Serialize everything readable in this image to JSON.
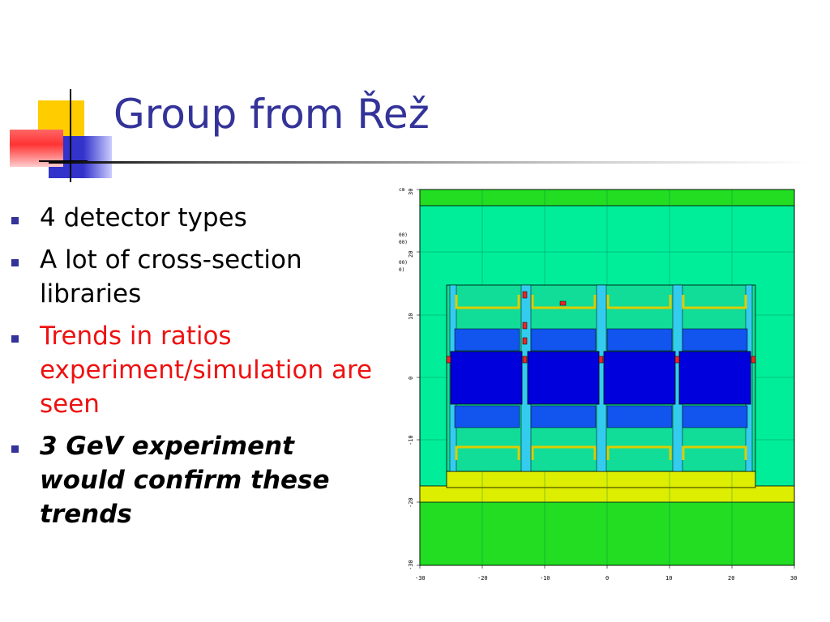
{
  "slide": {
    "title": "Group from Řež",
    "bullets": [
      {
        "text": "4 detector types",
        "style": "normal"
      },
      {
        "text": "A lot of cross-section libraries",
        "style": "normal"
      },
      {
        "text": "Trends in ratios experiment/simulation are seen",
        "style": "red"
      },
      {
        "text": "3 GeV experiment would confirm these trends",
        "style": "bold-italic"
      }
    ]
  },
  "figure": {
    "unit_label": "cm",
    "x_ticks": [
      "-30",
      "-20",
      "-10",
      "0",
      "10",
      "20",
      "30"
    ],
    "y_ticks": [
      "30",
      "20",
      "10",
      "0",
      "-10",
      "-20",
      "-30"
    ],
    "partial_labels": [
      "00)",
      "00)",
      "00)",
      "0)"
    ],
    "colors": {
      "background_medium": "#00ee99",
      "shield_green": "#22dd22",
      "target_dark_blue": "#0000dd",
      "foil_blue": "#1155ee",
      "holder_yellow": "#ddee00",
      "detector_red": "#ee2222",
      "title_blue": "#333399",
      "highlight_red": "#ee1111"
    }
  }
}
